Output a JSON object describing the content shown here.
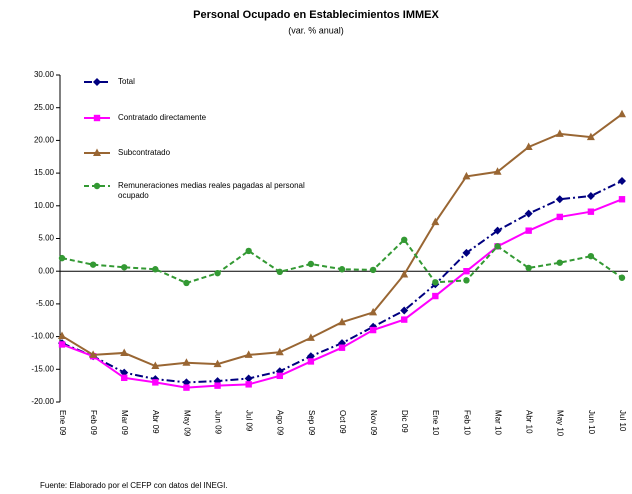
{
  "chart_data": {
    "type": "line",
    "title": "Personal Ocupado en Establecimientos IMMEX",
    "subtitle": "(var. % anual)",
    "source": "Fuente: Elaborado por el CEFP con datos del INEGI.",
    "categories": [
      "Ene 09",
      "Feb 09",
      "Mar 09",
      "Abr 09",
      "May 09",
      "Jun 09",
      "Jul 09",
      "Ago 09",
      "Sep 09",
      "Oct 09",
      "Nov 09",
      "Dic 09",
      "Ene 10",
      "Feb 10",
      "Mar 10",
      "Abr 10",
      "May 10",
      "Jun 10",
      "Jul 10"
    ],
    "ylim": [
      -20,
      30
    ],
    "yticks": [
      {
        "value": -20,
        "label": "-20.00"
      },
      {
        "value": -15,
        "label": "-15.00"
      },
      {
        "value": -10,
        "label": "-10.00"
      },
      {
        "value": -5,
        "label": "-5.00"
      },
      {
        "value": 0,
        "label": "0.00"
      },
      {
        "value": 5,
        "label": "5.00"
      },
      {
        "value": 10,
        "label": "10.00"
      },
      {
        "value": 15,
        "label": "15.00"
      },
      {
        "value": 20,
        "label": "20.00"
      },
      {
        "value": 25,
        "label": "25.00"
      },
      {
        "value": 30,
        "label": "30.00"
      }
    ],
    "legend": "upper left",
    "series": [
      {
        "name": "Total",
        "color": "#000080",
        "marker": "diamond",
        "dash": "dashdot",
        "values": [
          -11,
          -13,
          -15.5,
          -16.5,
          -17,
          -16.8,
          -16.4,
          -15.3,
          -13,
          -11,
          -8.5,
          -6,
          -2,
          2.8,
          6.2,
          8.8,
          11,
          11.5,
          13.8
        ]
      },
      {
        "name": "Contratado directamente",
        "color": "#ff00ff",
        "marker": "square",
        "dash": "solid",
        "values": [
          -11.2,
          -13,
          -16.3,
          -17,
          -17.8,
          -17.5,
          -17.3,
          -16,
          -13.8,
          -11.7,
          -9,
          -7.4,
          -3.8,
          0,
          3.8,
          6.2,
          8.3,
          9.1,
          11
        ]
      },
      {
        "name": "Subcontratado",
        "color": "#996633",
        "marker": "triangle",
        "dash": "solid",
        "values": [
          -9.9,
          -12.8,
          -12.5,
          -14.5,
          -14,
          -14.2,
          -12.8,
          -12.4,
          -10.2,
          -7.8,
          -6.3,
          -0.5,
          7.5,
          14.5,
          15.2,
          19,
          21,
          20.5,
          24
        ]
      },
      {
        "name": "Remuneraciones medias reales pagadas al personal ocupado",
        "color": "#339933",
        "marker": "circle",
        "dash": "dashed",
        "values": [
          2,
          1,
          0.6,
          0.3,
          -1.8,
          -0.3,
          3.1,
          -0.1,
          1.1,
          0.3,
          0.2,
          4.8,
          -1.7,
          -1.4,
          3.8,
          0.5,
          1.3,
          2.3,
          -1
        ]
      }
    ]
  }
}
